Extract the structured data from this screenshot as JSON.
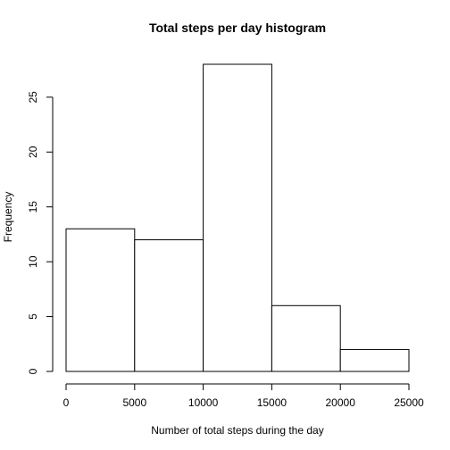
{
  "chart_data": {
    "type": "bar",
    "title": "Total steps per day histogram",
    "xlabel": "Number of total steps during the day",
    "ylabel": "Frequency",
    "bins": [
      {
        "start": 0,
        "end": 5000,
        "count": 13
      },
      {
        "start": 5000,
        "end": 10000,
        "count": 12
      },
      {
        "start": 10000,
        "end": 15000,
        "count": 28
      },
      {
        "start": 15000,
        "end": 20000,
        "count": 6
      },
      {
        "start": 20000,
        "end": 25000,
        "count": 2
      }
    ],
    "xlim": [
      0,
      25000
    ],
    "ylim": [
      0,
      28
    ],
    "x_ticks": [
      0,
      5000,
      10000,
      15000,
      20000,
      25000
    ],
    "y_ticks": [
      0,
      5,
      10,
      15,
      20,
      25
    ],
    "grid": false,
    "bar_fill": "#ffffff",
    "bar_stroke": "#000000"
  }
}
